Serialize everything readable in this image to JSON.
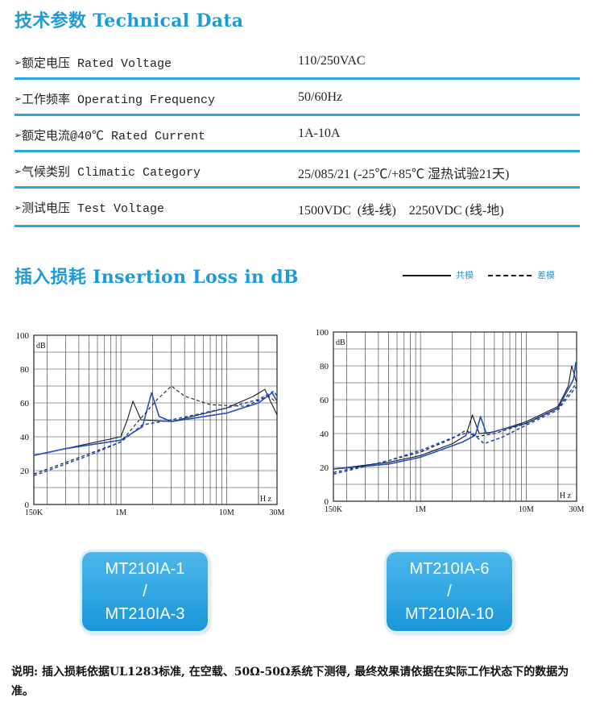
{
  "technical": {
    "title": "技术参数 Technical Data",
    "rows": [
      {
        "label": "➢额定电压 Rated Voltage",
        "value": "110/250VAC"
      },
      {
        "label": "➢工作频率 Operating Frequency",
        "value": "50/60Hz"
      },
      {
        "label": "➢额定电流@40℃ Rated Current",
        "value": "1A-10A"
      },
      {
        "label": "➢气候类别 Climatic Category",
        "value": "25/085/21 (-25℃/+85℃ 湿热试验21天)"
      },
      {
        "label": "➢测试电压 Test Voltage",
        "value": "1500VDC  (线-线)    2250VDC (线-地)"
      }
    ]
  },
  "insertion": {
    "title": "插入损耗 Insertion Loss in dB",
    "legend": {
      "common_mode": "共模",
      "differential_mode": "差模"
    }
  },
  "colors": {
    "accent": "#1e9bd7",
    "common_curve": "#1a1a1a",
    "diff_curve": "#1f4fc0"
  },
  "chart_data": [
    {
      "type": "line",
      "title": "",
      "ylabel": "dB",
      "xlabel": "Hz",
      "yticks": [
        "0",
        "20",
        "40",
        "60",
        "80",
        "100"
      ],
      "xticks": [
        "150K",
        "1M",
        "10M",
        "30M"
      ],
      "ylim": [
        0,
        100
      ],
      "xlim": [
        0.15,
        30
      ],
      "xscale": "log",
      "grid": true,
      "series": [
        {
          "mode": "common",
          "color": "black",
          "dash": false,
          "points": [
            [
              0.15,
              29
            ],
            [
              0.5,
              36
            ],
            [
              1,
              40
            ],
            [
              1.15,
              50
            ],
            [
              1.3,
              61
            ],
            [
              1.55,
              50
            ],
            [
              3,
              49
            ],
            [
              10,
              57
            ],
            [
              18,
              64
            ],
            [
              23,
              68
            ],
            [
              26,
              61
            ],
            [
              30,
              53
            ]
          ]
        },
        {
          "mode": "common",
          "color": "blue",
          "dash": false,
          "points": [
            [
              0.15,
              29
            ],
            [
              0.3,
              33
            ],
            [
              1,
              38
            ],
            [
              1.6,
              46
            ],
            [
              1.95,
              66
            ],
            [
              2.3,
              52
            ],
            [
              3,
              49
            ],
            [
              10,
              54
            ],
            [
              20,
              60
            ],
            [
              27,
              66
            ],
            [
              30,
              61
            ]
          ]
        },
        {
          "mode": "differential",
          "color": "black",
          "dash": true,
          "points": [
            [
              0.15,
              18
            ],
            [
              0.5,
              30
            ],
            [
              1,
              37
            ],
            [
              1.5,
              50
            ],
            [
              2.2,
              62
            ],
            [
              3,
              70
            ],
            [
              4,
              64
            ],
            [
              7,
              59
            ],
            [
              15,
              58
            ],
            [
              25,
              64
            ],
            [
              30,
              60
            ]
          ]
        },
        {
          "mode": "differential",
          "color": "blue",
          "dash": true,
          "points": [
            [
              0.15,
              17
            ],
            [
              0.5,
              29
            ],
            [
              1,
              37
            ],
            [
              1.6,
              47
            ],
            [
              3,
              50
            ],
            [
              10,
              57
            ],
            [
              20,
              62
            ],
            [
              28,
              67
            ],
            [
              30,
              64
            ]
          ]
        }
      ],
      "model": [
        "MT210IA-1",
        "/",
        "MT210IA-3"
      ]
    },
    {
      "type": "line",
      "title": "",
      "ylabel": "dB",
      "xlabel": "Hz",
      "yticks": [
        "0",
        "20",
        "40",
        "60",
        "80",
        "100"
      ],
      "xticks": [
        "150K",
        "1M",
        "10M",
        "30M"
      ],
      "ylim": [
        0,
        100
      ],
      "xlim": [
        0.15,
        30
      ],
      "xscale": "log",
      "grid": true,
      "series": [
        {
          "mode": "common",
          "color": "black",
          "dash": false,
          "points": [
            [
              0.15,
              19
            ],
            [
              0.5,
              23
            ],
            [
              1,
              27
            ],
            [
              2,
              34
            ],
            [
              2.7,
              39
            ],
            [
              3.1,
              51
            ],
            [
              3.6,
              40
            ],
            [
              5,
              41
            ],
            [
              10,
              47
            ],
            [
              20,
              56
            ],
            [
              25,
              68
            ],
            [
              27,
              80
            ],
            [
              30,
              70
            ]
          ]
        },
        {
          "mode": "common",
          "color": "blue",
          "dash": false,
          "points": [
            [
              0.15,
              19
            ],
            [
              0.5,
              22
            ],
            [
              1,
              26
            ],
            [
              2.5,
              35
            ],
            [
              3.3,
              39
            ],
            [
              3.7,
              50
            ],
            [
              4.2,
              40
            ],
            [
              10,
              46
            ],
            [
              20,
              55
            ],
            [
              28,
              72
            ],
            [
              29.5,
              82
            ],
            [
              30,
              76
            ]
          ]
        },
        {
          "mode": "differential",
          "color": "black",
          "dash": true,
          "points": [
            [
              0.15,
              17
            ],
            [
              0.5,
              24
            ],
            [
              1,
              29
            ],
            [
              2,
              37
            ],
            [
              2.7,
              42
            ],
            [
              3.3,
              38
            ],
            [
              5,
              40
            ],
            [
              10,
              46
            ],
            [
              20,
              55
            ],
            [
              30,
              70
            ]
          ]
        },
        {
          "mode": "differential",
          "color": "blue",
          "dash": true,
          "points": [
            [
              0.15,
              16
            ],
            [
              0.5,
              24
            ],
            [
              1,
              30
            ],
            [
              2.3,
              39
            ],
            [
              3,
              41
            ],
            [
              4,
              34
            ],
            [
              6,
              38
            ],
            [
              10,
              45
            ],
            [
              20,
              54
            ],
            [
              30,
              68
            ]
          ]
        }
      ],
      "model": [
        "MT210IA-6",
        "/",
        "MT210IA-10"
      ]
    }
  ],
  "note": "说明: 插入损耗依据UL1283标准, 在空载、50Ω-50Ω系统下测得, 最终效果请依据在实际工作状态下的数据为准。"
}
